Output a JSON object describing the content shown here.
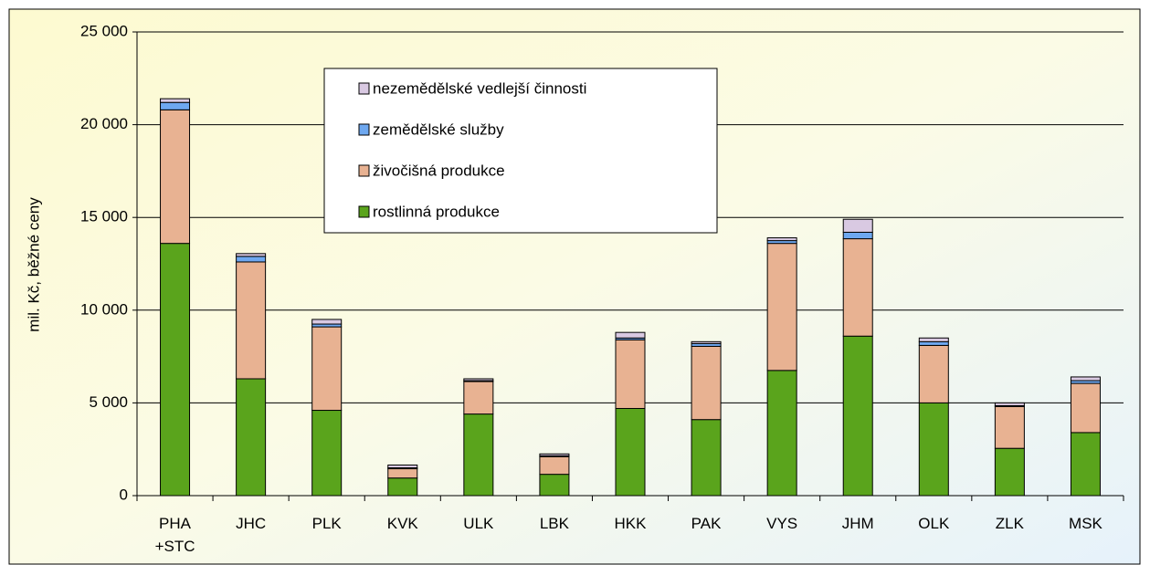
{
  "chart_data": {
    "type": "stacked_bar",
    "y_label": "mil. Kč, běžné ceny",
    "categories": [
      "PHA +STC",
      "JHC",
      "PLK",
      "KVK",
      "ULK",
      "LBK",
      "HKK",
      "PAK",
      "VYS",
      "JHM",
      "OLK",
      "ZLK",
      "MSK"
    ],
    "series": [
      {
        "name": "rostlinná produkce",
        "color": "#5aa41c",
        "values": [
          13600,
          6300,
          4600,
          950,
          4400,
          1150,
          4700,
          4100,
          6750,
          8600,
          5000,
          2550,
          3400
        ]
      },
      {
        "name": "živočišná produkce",
        "color": "#e8b292",
        "values": [
          7200,
          6300,
          4500,
          500,
          1750,
          950,
          3700,
          3950,
          6850,
          5250,
          3100,
          2250,
          2650
        ]
      },
      {
        "name": "zemědělské služby",
        "color": "#6ea8f0",
        "values": [
          400,
          300,
          150,
          50,
          50,
          50,
          100,
          150,
          150,
          350,
          200,
          50,
          150
        ]
      },
      {
        "name": "nezemědělské vedlejší činnosti",
        "color": "#d9c9e2",
        "values": [
          200,
          150,
          250,
          150,
          100,
          100,
          300,
          100,
          150,
          700,
          200,
          150,
          200
        ]
      }
    ],
    "ylim": [
      0,
      25000
    ],
    "yticks": [
      0,
      {
        "value": 5000,
        "label": "5 000"
      },
      {
        "value": 10000,
        "label": "10 000"
      },
      {
        "value": 15000,
        "label": "15 000"
      },
      {
        "value": 20000,
        "label": "20 000"
      },
      {
        "value": 25000,
        "label": "25 000"
      }
    ],
    "grid": true
  }
}
